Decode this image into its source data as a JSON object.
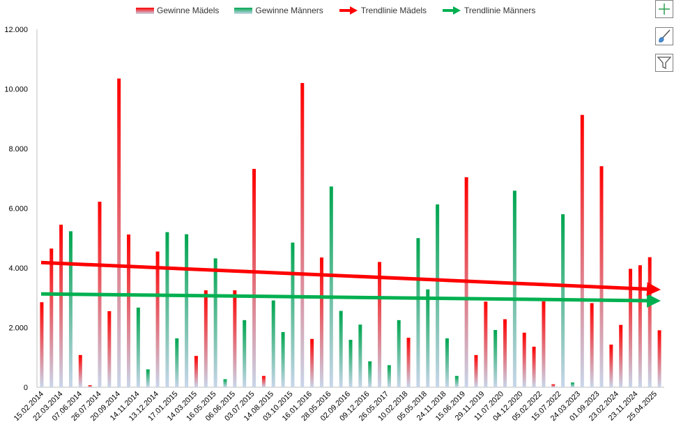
{
  "legend": {
    "gewinne_maedels": "Gewinne Mädels",
    "gewinne_maenner": "Gewinne Männers",
    "trend_maedels": "Trendlinie Mädels",
    "trend_maenner": "Trendlinie Männers"
  },
  "toolbar": {
    "chart_elements_icon": "plus-icon",
    "chart_styles_icon": "brush-icon",
    "chart_filters_icon": "funnel-icon"
  },
  "colors": {
    "maedels": "#ff0000",
    "maenner": "#00a650",
    "fade": "#c9d6ea",
    "trend_maedels": "#ff0000",
    "trend_maenner": "#00b050"
  },
  "chart_data": {
    "type": "bar",
    "y_ticks": [
      "0",
      "2.000",
      "4.000",
      "6.000",
      "8.000",
      "10.000",
      "12.000"
    ],
    "ylim": [
      0,
      12000
    ],
    "x_labels": [
      "15.02.2014",
      "22.03.2014",
      "07.06.2014",
      "26.07.2014",
      "20.09.2014",
      "14.11.2014",
      "13.12.2014",
      "17.01.2015",
      "14.03.2015",
      "16.05.2015",
      "06.06.2015",
      "03.07.2015",
      "14.08.2015",
      "03.10.2015",
      "16.01.2016",
      "28.05.2016",
      "02.09.2016",
      "09.12.2016",
      "26.05.2017",
      "10.02.2018",
      "05.05.2018",
      "24.11.2018",
      "15.06.2019",
      "29.11.2019",
      "11.07.2020",
      "04.12.2020",
      "05.02.2022",
      "15.07.2022",
      "24.03.2023",
      "01.09.2023",
      "23.02.2024",
      "23.11.2024",
      "25.04.2025"
    ],
    "bars": [
      {
        "series": "maedels",
        "value": 2850
      },
      {
        "series": "maedels",
        "value": 4650
      },
      {
        "series": "maedels",
        "value": 5450
      },
      {
        "series": "maenner",
        "value": 5230
      },
      {
        "series": "maedels",
        "value": 1080
      },
      {
        "series": "maedels",
        "value": 70
      },
      {
        "series": "maedels",
        "value": 6220
      },
      {
        "series": "maedels",
        "value": 2550
      },
      {
        "series": "maedels",
        "value": 10350
      },
      {
        "series": "maedels",
        "value": 5120
      },
      {
        "series": "maenner",
        "value": 2670
      },
      {
        "series": "maenner",
        "value": 600
      },
      {
        "series": "maedels",
        "value": 4550
      },
      {
        "series": "maenner",
        "value": 5200
      },
      {
        "series": "maenner",
        "value": 1640
      },
      {
        "series": "maenner",
        "value": 5130
      },
      {
        "series": "maedels",
        "value": 1050
      },
      {
        "series": "maedels",
        "value": 3250
      },
      {
        "series": "maenner",
        "value": 4320
      },
      {
        "series": "maenner",
        "value": 270
      },
      {
        "series": "maedels",
        "value": 3250
      },
      {
        "series": "maenner",
        "value": 2250
      },
      {
        "series": "maedels",
        "value": 7320
      },
      {
        "series": "maedels",
        "value": 380
      },
      {
        "series": "maenner",
        "value": 2910
      },
      {
        "series": "maenner",
        "value": 1850
      },
      {
        "series": "maenner",
        "value": 4850
      },
      {
        "series": "maedels",
        "value": 10200
      },
      {
        "series": "maedels",
        "value": 1620
      },
      {
        "series": "maedels",
        "value": 4350
      },
      {
        "series": "maenner",
        "value": 6730
      },
      {
        "series": "maenner",
        "value": 2560
      },
      {
        "series": "maenner",
        "value": 1590
      },
      {
        "series": "maenner",
        "value": 2100
      },
      {
        "series": "maenner",
        "value": 870
      },
      {
        "series": "maedels",
        "value": 4200
      },
      {
        "series": "maenner",
        "value": 740
      },
      {
        "series": "maenner",
        "value": 2250
      },
      {
        "series": "maedels",
        "value": 1660
      },
      {
        "series": "maenner",
        "value": 5000
      },
      {
        "series": "maenner",
        "value": 3280
      },
      {
        "series": "maenner",
        "value": 6130
      },
      {
        "series": "maenner",
        "value": 1640
      },
      {
        "series": "maenner",
        "value": 380
      },
      {
        "series": "maedels",
        "value": 7040
      },
      {
        "series": "maedels",
        "value": 1080
      },
      {
        "series": "maedels",
        "value": 2870
      },
      {
        "series": "maenner",
        "value": 1920
      },
      {
        "series": "maedels",
        "value": 2280
      },
      {
        "series": "maenner",
        "value": 6590
      },
      {
        "series": "maedels",
        "value": 1830
      },
      {
        "series": "maedels",
        "value": 1360
      },
      {
        "series": "maedels",
        "value": 2880
      },
      {
        "series": "maedels",
        "value": 100
      },
      {
        "series": "maenner",
        "value": 5800
      },
      {
        "series": "maenner",
        "value": 160
      },
      {
        "series": "maedels",
        "value": 9130
      },
      {
        "series": "maedels",
        "value": 2820
      },
      {
        "series": "maedels",
        "value": 7410
      },
      {
        "series": "maedels",
        "value": 1430
      },
      {
        "series": "maedels",
        "value": 2090
      },
      {
        "series": "maedels",
        "value": 3970
      },
      {
        "series": "maedels",
        "value": 4090
      },
      {
        "series": "maedels",
        "value": 4360
      },
      {
        "series": "maedels",
        "value": 1910
      }
    ],
    "trend_maedels": {
      "start": 4180,
      "end": 3280
    },
    "trend_maenner": {
      "start": 3130,
      "end": 2900
    },
    "grid": false,
    "legend_position": "top"
  }
}
